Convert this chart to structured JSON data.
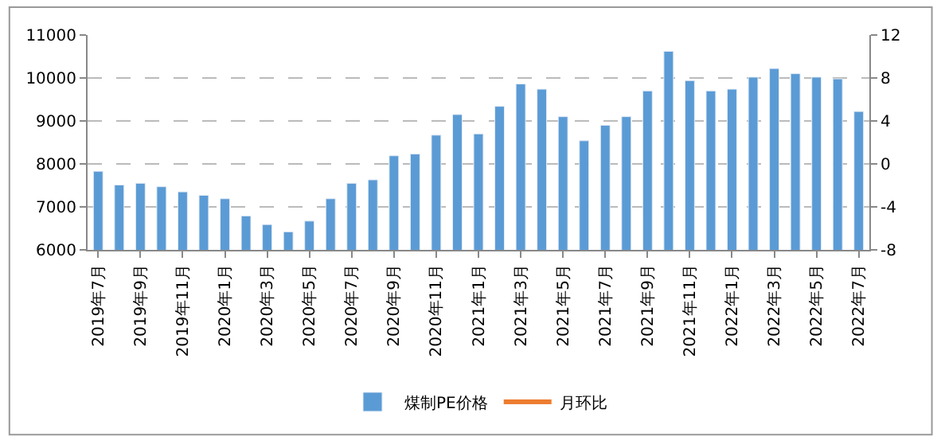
{
  "chart_data": {
    "type": "bar",
    "categories": [
      "2019年7月",
      null,
      "2019年9月",
      null,
      "2019年11月",
      null,
      "2020年1月",
      null,
      "2020年3月",
      null,
      "2020年5月",
      null,
      "2020年7月",
      null,
      "2020年9月",
      null,
      "2020年11月",
      null,
      "2021年1月",
      null,
      "2021年3月",
      null,
      "2021年5月",
      null,
      "2021年7月",
      null,
      "2021年9月",
      null,
      "2021年11月",
      null,
      "2022年1月",
      null,
      "2022年3月",
      null,
      "2022年5月",
      null,
      "2022年7月"
    ],
    "series": [
      {
        "name": "煤制PE价格",
        "color": "#5b9bd5",
        "values": [
          7830,
          7510,
          7550,
          7470,
          7350,
          7270,
          7190,
          6790,
          6590,
          6420,
          6670,
          7190,
          7550,
          7630,
          8190,
          8230,
          8670,
          9150,
          8700,
          9340,
          9860,
          9740,
          9100,
          8540,
          8900,
          9100,
          9700,
          10620,
          9940,
          9700,
          9740,
          10020,
          10220,
          10100,
          10020,
          9980,
          9220
        ]
      },
      {
        "name": "月环比",
        "color": "#ed7d31",
        "type": "line",
        "axis": "y2",
        "values": [
          null,
          null,
          null,
          null,
          null,
          null,
          null,
          null,
          null,
          null,
          null,
          null,
          null,
          null,
          null,
          null,
          null,
          null,
          null,
          null,
          null,
          null,
          null,
          null,
          null,
          null,
          null,
          null,
          null,
          null,
          null,
          null,
          null,
          null,
          null,
          null,
          null
        ]
      }
    ],
    "ylim": [
      6000,
      11000
    ],
    "yticks": [
      6000,
      7000,
      8000,
      9000,
      10000,
      11000
    ],
    "y2lim": [
      -8,
      12
    ],
    "y2ticks": [
      -8,
      -4,
      0,
      4,
      8,
      12
    ],
    "grid": "y",
    "legend": "bottom"
  }
}
